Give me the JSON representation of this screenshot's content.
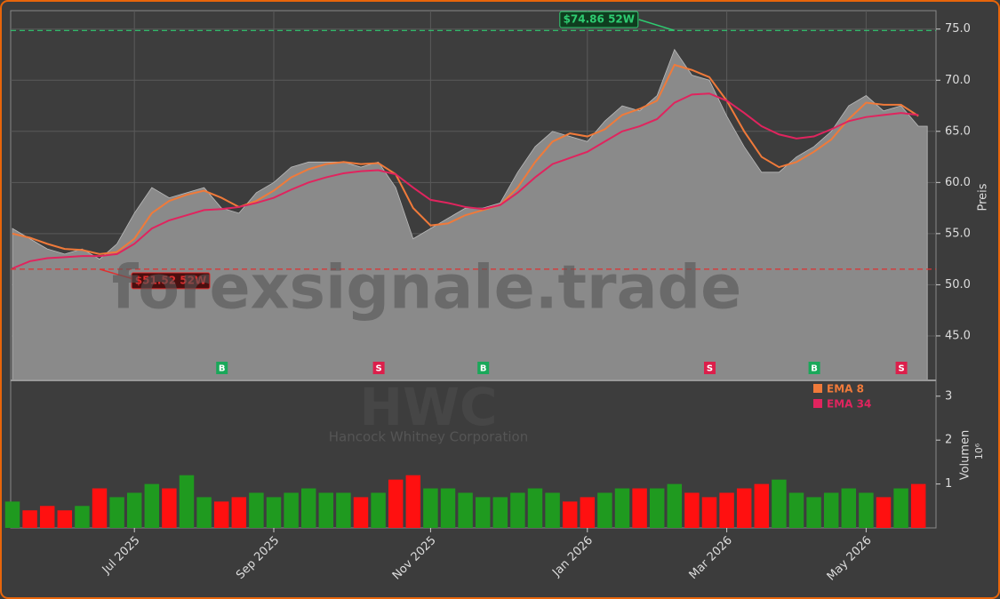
{
  "chart_data": {
    "type": "area",
    "watermark": "forexsignale.trade",
    "ticker": "HWC",
    "company": "Hancock Whitney Corporation",
    "ylabel": "Preis",
    "categories": [
      null,
      null,
      null,
      null,
      null,
      null,
      null,
      "Jul 2025",
      null,
      null,
      null,
      null,
      null,
      null,
      null,
      "Sep 2025",
      null,
      null,
      null,
      null,
      null,
      null,
      null,
      null,
      "Nov 2025",
      null,
      null,
      null,
      null,
      null,
      null,
      null,
      null,
      "Jan 2026",
      null,
      null,
      null,
      null,
      null,
      null,
      null,
      "Mar 2026",
      null,
      null,
      null,
      null,
      null,
      null,
      null,
      "May 2026",
      null,
      null,
      null
    ],
    "close": {
      "color": "#8a8a8a",
      "values": [
        55.5,
        54.5,
        53.5,
        53.0,
        53.5,
        52.5,
        54.0,
        57.0,
        59.5,
        58.5,
        59.0,
        59.5,
        57.5,
        57.0,
        59.0,
        60.0,
        61.5,
        62.0,
        62.0,
        62.0,
        61.5,
        62.0,
        59.5,
        54.5,
        55.5,
        56.5,
        57.5,
        57.5,
        58.0,
        61.0,
        63.5,
        65.0,
        64.5,
        64.0,
        66.0,
        67.5,
        67.0,
        68.5,
        73.0,
        70.5,
        70.0,
        66.5,
        63.5,
        61.0,
        61.0,
        62.5,
        63.5,
        65.0,
        67.5,
        68.5,
        67.0,
        67.5,
        65.5
      ]
    },
    "series": [
      {
        "name": "EMA 8",
        "color": "#f07a3a",
        "values": [
          55.0,
          54.6,
          54.0,
          53.5,
          53.4,
          53.0,
          53.2,
          54.5,
          57.0,
          58.2,
          58.8,
          59.2,
          58.5,
          57.6,
          58.2,
          59.2,
          60.5,
          61.3,
          61.8,
          62.0,
          61.8,
          61.9,
          60.8,
          57.5,
          55.8,
          56.0,
          56.8,
          57.3,
          57.8,
          59.5,
          62.0,
          64.0,
          64.8,
          64.5,
          65.2,
          66.6,
          67.2,
          68.0,
          71.5,
          71.0,
          70.3,
          68.0,
          65.0,
          62.5,
          61.5,
          62.0,
          63.0,
          64.2,
          66.2,
          67.8,
          67.6,
          67.6,
          66.5
        ]
      },
      {
        "name": "EMA 34",
        "color": "#e0245e",
        "values": [
          51.6,
          52.3,
          52.6,
          52.7,
          52.8,
          52.8,
          53.0,
          54.0,
          55.5,
          56.3,
          56.8,
          57.3,
          57.4,
          57.6,
          58.0,
          58.5,
          59.3,
          60.0,
          60.5,
          60.9,
          61.1,
          61.2,
          60.8,
          59.5,
          58.3,
          58.0,
          57.6,
          57.4,
          57.8,
          59.0,
          60.5,
          61.8,
          62.4,
          63.0,
          64.0,
          65.0,
          65.5,
          66.2,
          67.8,
          68.6,
          68.7,
          68.0,
          66.8,
          65.5,
          64.7,
          64.3,
          64.5,
          65.2,
          66.0,
          66.4,
          66.6,
          66.8,
          66.6
        ]
      }
    ],
    "ylim": [
      40.65,
      76.8
    ],
    "yticks": [
      {
        "value": 45,
        "label": "45.0"
      },
      {
        "value": 50,
        "label": "50.0"
      },
      {
        "value": 55,
        "label": "55.0"
      },
      {
        "value": 60,
        "label": "60.0"
      },
      {
        "value": 65,
        "label": "65.0"
      },
      {
        "value": 70,
        "label": "70.0"
      },
      {
        "value": 75,
        "label": "75.0"
      }
    ],
    "grid": true,
    "high": {
      "label": "$74.86 52W",
      "value": 74.86,
      "color": "#2ecc71"
    },
    "low": {
      "label": "$51.52 52W",
      "value": 51.52,
      "color": "#e03030"
    },
    "signals": [
      null,
      null,
      null,
      null,
      null,
      null,
      null,
      null,
      null,
      null,
      null,
      null,
      "B",
      null,
      null,
      null,
      null,
      null,
      null,
      null,
      null,
      "S",
      null,
      null,
      null,
      null,
      null,
      "B",
      null,
      null,
      null,
      null,
      null,
      null,
      null,
      null,
      null,
      null,
      null,
      null,
      "S",
      null,
      null,
      null,
      null,
      null,
      "B",
      null,
      null,
      null,
      null,
      "S",
      null
    ],
    "signal_colors": {
      "B": "#1aa85a",
      "S": "#dc1f4b"
    },
    "volume": {
      "up_color": "#1f9a1f",
      "down_color": "#ff1010",
      "values": [
        0.6,
        0.4,
        0.5,
        0.4,
        0.5,
        0.9,
        0.7,
        0.8,
        1.0,
        0.9,
        1.2,
        0.7,
        0.6,
        0.7,
        0.8,
        0.7,
        0.8,
        0.9,
        0.8,
        0.8,
        0.7,
        0.8,
        1.1,
        1.2,
        0.9,
        0.9,
        0.8,
        0.7,
        0.7,
        0.8,
        0.9,
        0.8,
        0.6,
        0.7,
        0.8,
        0.9,
        0.9,
        0.9,
        1.0,
        0.8,
        0.7,
        0.8,
        0.9,
        1.0,
        1.1,
        0.8,
        0.7,
        0.8,
        0.9,
        0.8,
        0.7,
        0.9,
        1.0
      ]
    },
    "y2label": "Volumen",
    "y2unit": "10⁶",
    "y2lim": [
      0,
      3.36
    ],
    "y2ticks": [
      1,
      2,
      3
    ]
  }
}
